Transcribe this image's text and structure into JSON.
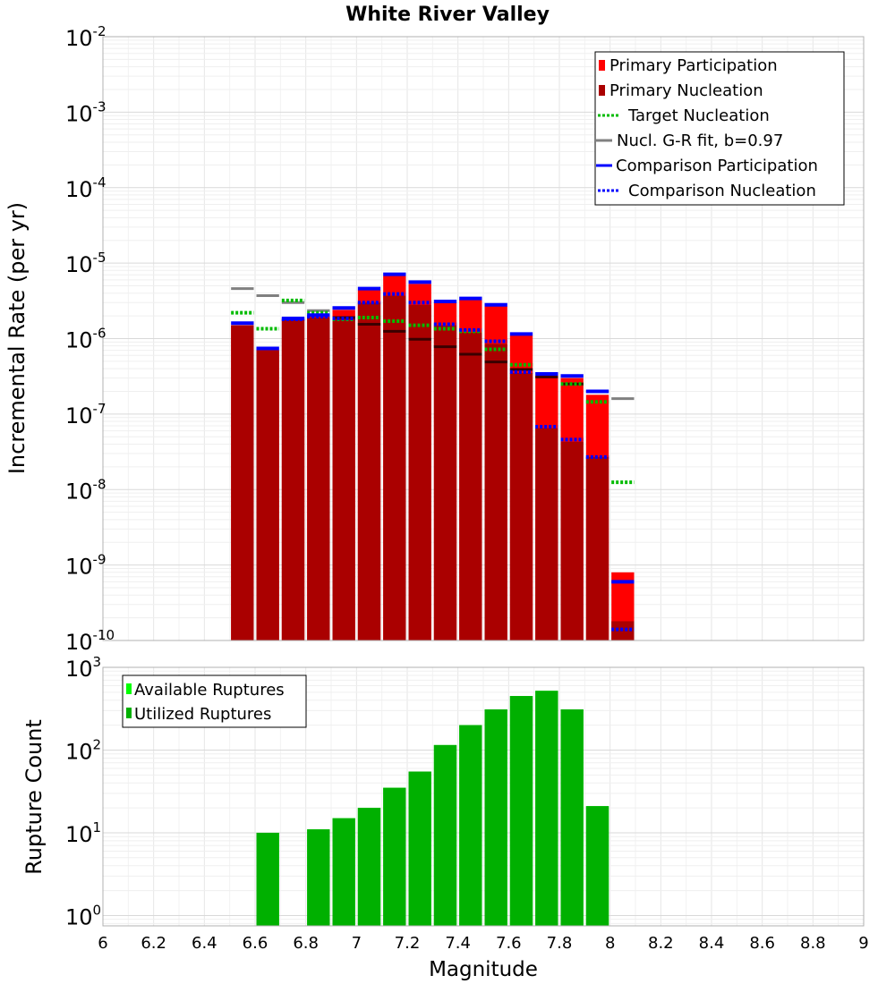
{
  "chart_data": [
    {
      "type": "bar",
      "title": "White River Valley",
      "xlabel": "",
      "ylabel": "Incremental Rate (per yr)",
      "y_scale": "log",
      "xlim": [
        6.0,
        9.0
      ],
      "ylim": [
        1e-10,
        0.01
      ],
      "y_tick_labels": [
        {
          "base": "10",
          "exp": "-10",
          "value": 1e-10
        },
        {
          "base": "10",
          "exp": "-9",
          "value": 1e-09
        },
        {
          "base": "10",
          "exp": "-8",
          "value": 1e-08
        },
        {
          "base": "10",
          "exp": "-7",
          "value": 1e-07
        },
        {
          "base": "10",
          "exp": "-6",
          "value": 1e-06
        },
        {
          "base": "10",
          "exp": "-5",
          "value": 1e-05
        },
        {
          "base": "10",
          "exp": "-4",
          "value": 0.0001
        },
        {
          "base": "10",
          "exp": "-3",
          "value": 0.001
        },
        {
          "base": "10",
          "exp": "-2",
          "value": 0.01
        }
      ],
      "grid": true,
      "legend_position": "top-right",
      "legend": [
        {
          "label": "Primary Participation",
          "style": "bar",
          "color": "#ff0000"
        },
        {
          "label": "Primary Nucleation",
          "style": "bar",
          "color": "#aa0000"
        },
        {
          "label": "Target Nucleation",
          "style": "dotted",
          "color": "#00bb00"
        },
        {
          "label": "Nucl. G-R fit, b=0.97",
          "style": "solid",
          "color": "#808080"
        },
        {
          "label": "Comparison Participation",
          "style": "solid",
          "color": "#0000ff"
        },
        {
          "label": "Comparison Nucleation",
          "style": "dotted",
          "color": "#0000ff"
        }
      ],
      "bin_width": 0.1,
      "series": [
        {
          "name": "Primary Participation",
          "color": "#ff0000",
          "x": [
            6.55,
            6.65,
            6.75,
            6.85,
            6.95,
            7.05,
            7.15,
            7.25,
            7.35,
            7.45,
            7.55,
            7.65,
            7.75,
            7.85,
            7.95,
            8.05
          ],
          "values": [
            1.5e-06,
            7e-07,
            1.8e-06,
            2e-06,
            2.4e-06,
            4.4e-06,
            6.8e-06,
            5.3e-06,
            3e-06,
            3.3e-06,
            2.7e-06,
            1.1e-06,
            3.2e-07,
            3e-07,
            1.8e-07,
            8e-10
          ]
        },
        {
          "name": "Primary Nucleation",
          "color": "#aa0000",
          "x": [
            6.55,
            6.65,
            6.75,
            6.85,
            6.95,
            7.05,
            7.15,
            7.25,
            7.35,
            7.45,
            7.55,
            7.65,
            7.75,
            7.85,
            7.95,
            8.05
          ],
          "values": [
            1.5e-06,
            7e-07,
            1.8e-06,
            1.9e-06,
            1.9e-06,
            3e-06,
            3.7e-06,
            2.8e-06,
            1.5e-06,
            1.2e-06,
            8.5e-07,
            3.5e-07,
            6.5e-08,
            4.3e-08,
            2.7e-08,
            1.8e-10
          ]
        },
        {
          "name": "Target Nucleation",
          "color": "#00bb00",
          "x": [
            6.55,
            6.65,
            6.75,
            6.85,
            6.95,
            7.05,
            7.15,
            7.25,
            7.35,
            7.45,
            7.55,
            7.65,
            7.75,
            7.85,
            7.95,
            8.05
          ],
          "values": [
            2.2e-06,
            1.35e-06,
            3.2e-06,
            2.2e-06,
            1.8e-06,
            1.9e-06,
            1.7e-06,
            1.5e-06,
            1.35e-06,
            1.25e-06,
            7.2e-07,
            4.5e-07,
            null,
            2.5e-07,
            1.45e-07,
            1.25e-08
          ]
        },
        {
          "name": "Nucl. G-R fit, b=0.97",
          "color": "#808080",
          "x": [
            6.55,
            6.65,
            6.75,
            6.85,
            6.95,
            7.05,
            7.15,
            7.25,
            7.35,
            7.45,
            7.55,
            7.65,
            7.75,
            7.85,
            7.95,
            8.05
          ],
          "values": [
            4.6e-06,
            3.7e-06,
            3e-06,
            2.35e-06,
            1.9e-06,
            1.55e-06,
            1.25e-06,
            9.8e-07,
            7.8e-07,
            6.2e-07,
            4.9e-07,
            3.9e-07,
            3.1e-07,
            2.5e-07,
            2e-07,
            1.6e-07
          ]
        },
        {
          "name": "Comparison Participation",
          "color": "#0000ff",
          "x": [
            6.55,
            6.65,
            6.75,
            6.85,
            6.95,
            7.05,
            7.15,
            7.25,
            7.35,
            7.45,
            7.55,
            7.65,
            7.75,
            7.85,
            7.95,
            8.05
          ],
          "values": [
            1.6e-06,
            7.4e-07,
            1.85e-06,
            2.05e-06,
            2.55e-06,
            4.6e-06,
            7.1e-06,
            5.6e-06,
            3.1e-06,
            3.4e-06,
            2.8e-06,
            1.15e-06,
            3.4e-07,
            3.2e-07,
            2e-07,
            6e-10
          ]
        },
        {
          "name": "Comparison Nucleation",
          "color": "#0000ff",
          "x": [
            6.55,
            6.65,
            6.75,
            6.85,
            6.95,
            7.05,
            7.15,
            7.25,
            7.35,
            7.45,
            7.55,
            7.65,
            7.75,
            7.85,
            7.95,
            8.05
          ],
          "values": [
            null,
            null,
            1.8e-06,
            1.95e-06,
            1.85e-06,
            3e-06,
            3.9e-06,
            3e-06,
            1.55e-06,
            1.3e-06,
            9.2e-07,
            3.6e-07,
            6.8e-08,
            4.6e-08,
            2.7e-08,
            1.4e-10
          ]
        }
      ]
    },
    {
      "type": "bar",
      "title": "",
      "xlabel": "Magnitude",
      "ylabel": "Rupture Count",
      "y_scale": "log",
      "xlim": [
        6.0,
        9.0
      ],
      "ylim": [
        0.75,
        1000
      ],
      "x_tick_labels": [
        "6",
        "6.2",
        "6.4",
        "6.6",
        "6.8",
        "7",
        "7.2",
        "7.4",
        "7.6",
        "7.8",
        "8",
        "8.2",
        "8.4",
        "8.6",
        "8.8",
        "9"
      ],
      "y_tick_labels": [
        {
          "base": "10",
          "exp": "0",
          "value": 1
        },
        {
          "base": "10",
          "exp": "1",
          "value": 10
        },
        {
          "base": "10",
          "exp": "2",
          "value": 100
        },
        {
          "base": "10",
          "exp": "3",
          "value": 1000
        }
      ],
      "grid": true,
      "legend_position": "top-left",
      "legend": [
        {
          "label": "Available Ruptures",
          "color": "#00ff00"
        },
        {
          "label": "Utilized Ruptures",
          "color": "#00b000"
        }
      ],
      "bin_width": 0.1,
      "series": [
        {
          "name": "Available Ruptures",
          "color": "#00ff00",
          "x": [
            6.65,
            6.85,
            6.95,
            7.05,
            7.15,
            7.25,
            7.35,
            7.45,
            7.55,
            7.65,
            7.75,
            7.85,
            7.95
          ],
          "values": [
            10,
            11,
            15,
            20,
            35,
            55,
            115,
            200,
            310,
            450,
            520,
            310,
            21
          ]
        },
        {
          "name": "Utilized Ruptures",
          "color": "#00b000",
          "x": [
            6.65,
            6.85,
            6.95,
            7.05,
            7.15,
            7.25,
            7.35,
            7.45,
            7.55,
            7.65,
            7.75,
            7.85,
            7.95
          ],
          "values": [
            10,
            11,
            15,
            20,
            35,
            55,
            115,
            200,
            310,
            450,
            520,
            310,
            21
          ]
        }
      ]
    }
  ]
}
